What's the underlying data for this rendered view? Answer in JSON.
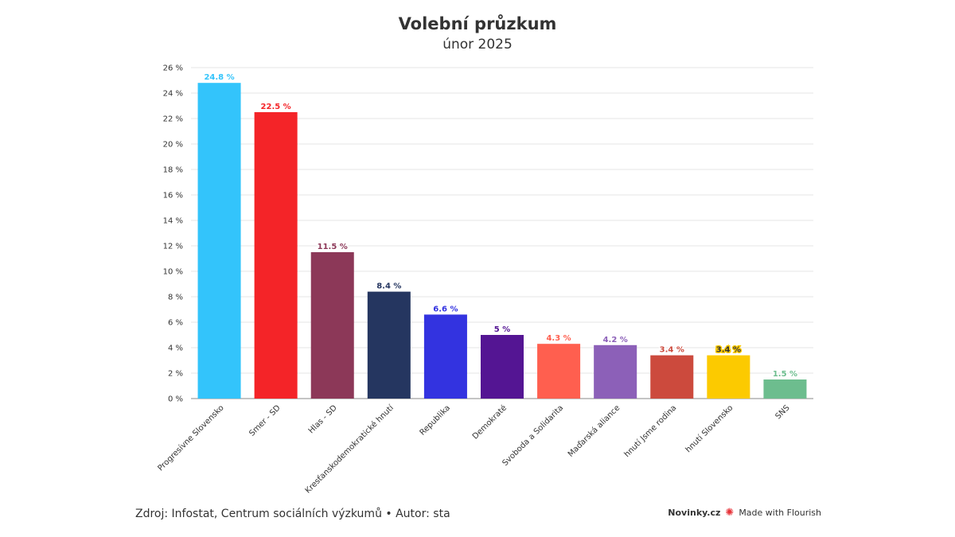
{
  "header": {
    "title": "Volební průzkum",
    "subtitle": "únor 2025"
  },
  "chart_data": {
    "type": "bar",
    "categories": [
      "Progresívne Slovensko",
      "Smer - SD",
      "Hlas - SD",
      "Kresťanskodemokratické hnutí",
      "Republika",
      "Demokraté",
      "Svoboda a Solidarita",
      "Maďarská aliance",
      "hnutí Jsme rodina",
      "hnutí Slovensko",
      "SNS"
    ],
    "values": [
      24.8,
      22.5,
      11.5,
      8.4,
      6.6,
      5,
      4.3,
      4.2,
      3.4,
      3.4,
      1.5
    ],
    "value_labels": [
      "24.8 %",
      "22.5 %",
      "11.5 %",
      "8.4 %",
      "6.6 %",
      "5 %",
      "4.3 %",
      "4.2 %",
      "3.4 %",
      "3.4 %",
      "1.5 %"
    ],
    "colors": [
      "#33c4fb",
      "#f42428",
      "#8c3858",
      "#253660",
      "#3333e0",
      "#541593",
      "#ff5f4f",
      "#8c60b8",
      "#cc4a3d",
      "#fcca00",
      "#6dbd8e"
    ],
    "ylim": [
      0,
      26
    ],
    "yticks": [
      0,
      2,
      4,
      6,
      8,
      10,
      12,
      14,
      16,
      18,
      20,
      22,
      24,
      26
    ],
    "ytick_labels": [
      "0 %",
      "2 %",
      "4 %",
      "6 %",
      "8 %",
      "10 %",
      "12 %",
      "14 %",
      "16 %",
      "18 %",
      "20 %",
      "22 %",
      "24 %",
      "26 %"
    ],
    "grid": true,
    "title": "Volební průzkum",
    "xlabel": "",
    "ylabel": ""
  },
  "footer": {
    "source": "Zdroj: Infostat, Centrum sociálních výzkumů • Autor: sta",
    "brand": "Novinky.cz",
    "made_with": "Made with Flourish"
  }
}
